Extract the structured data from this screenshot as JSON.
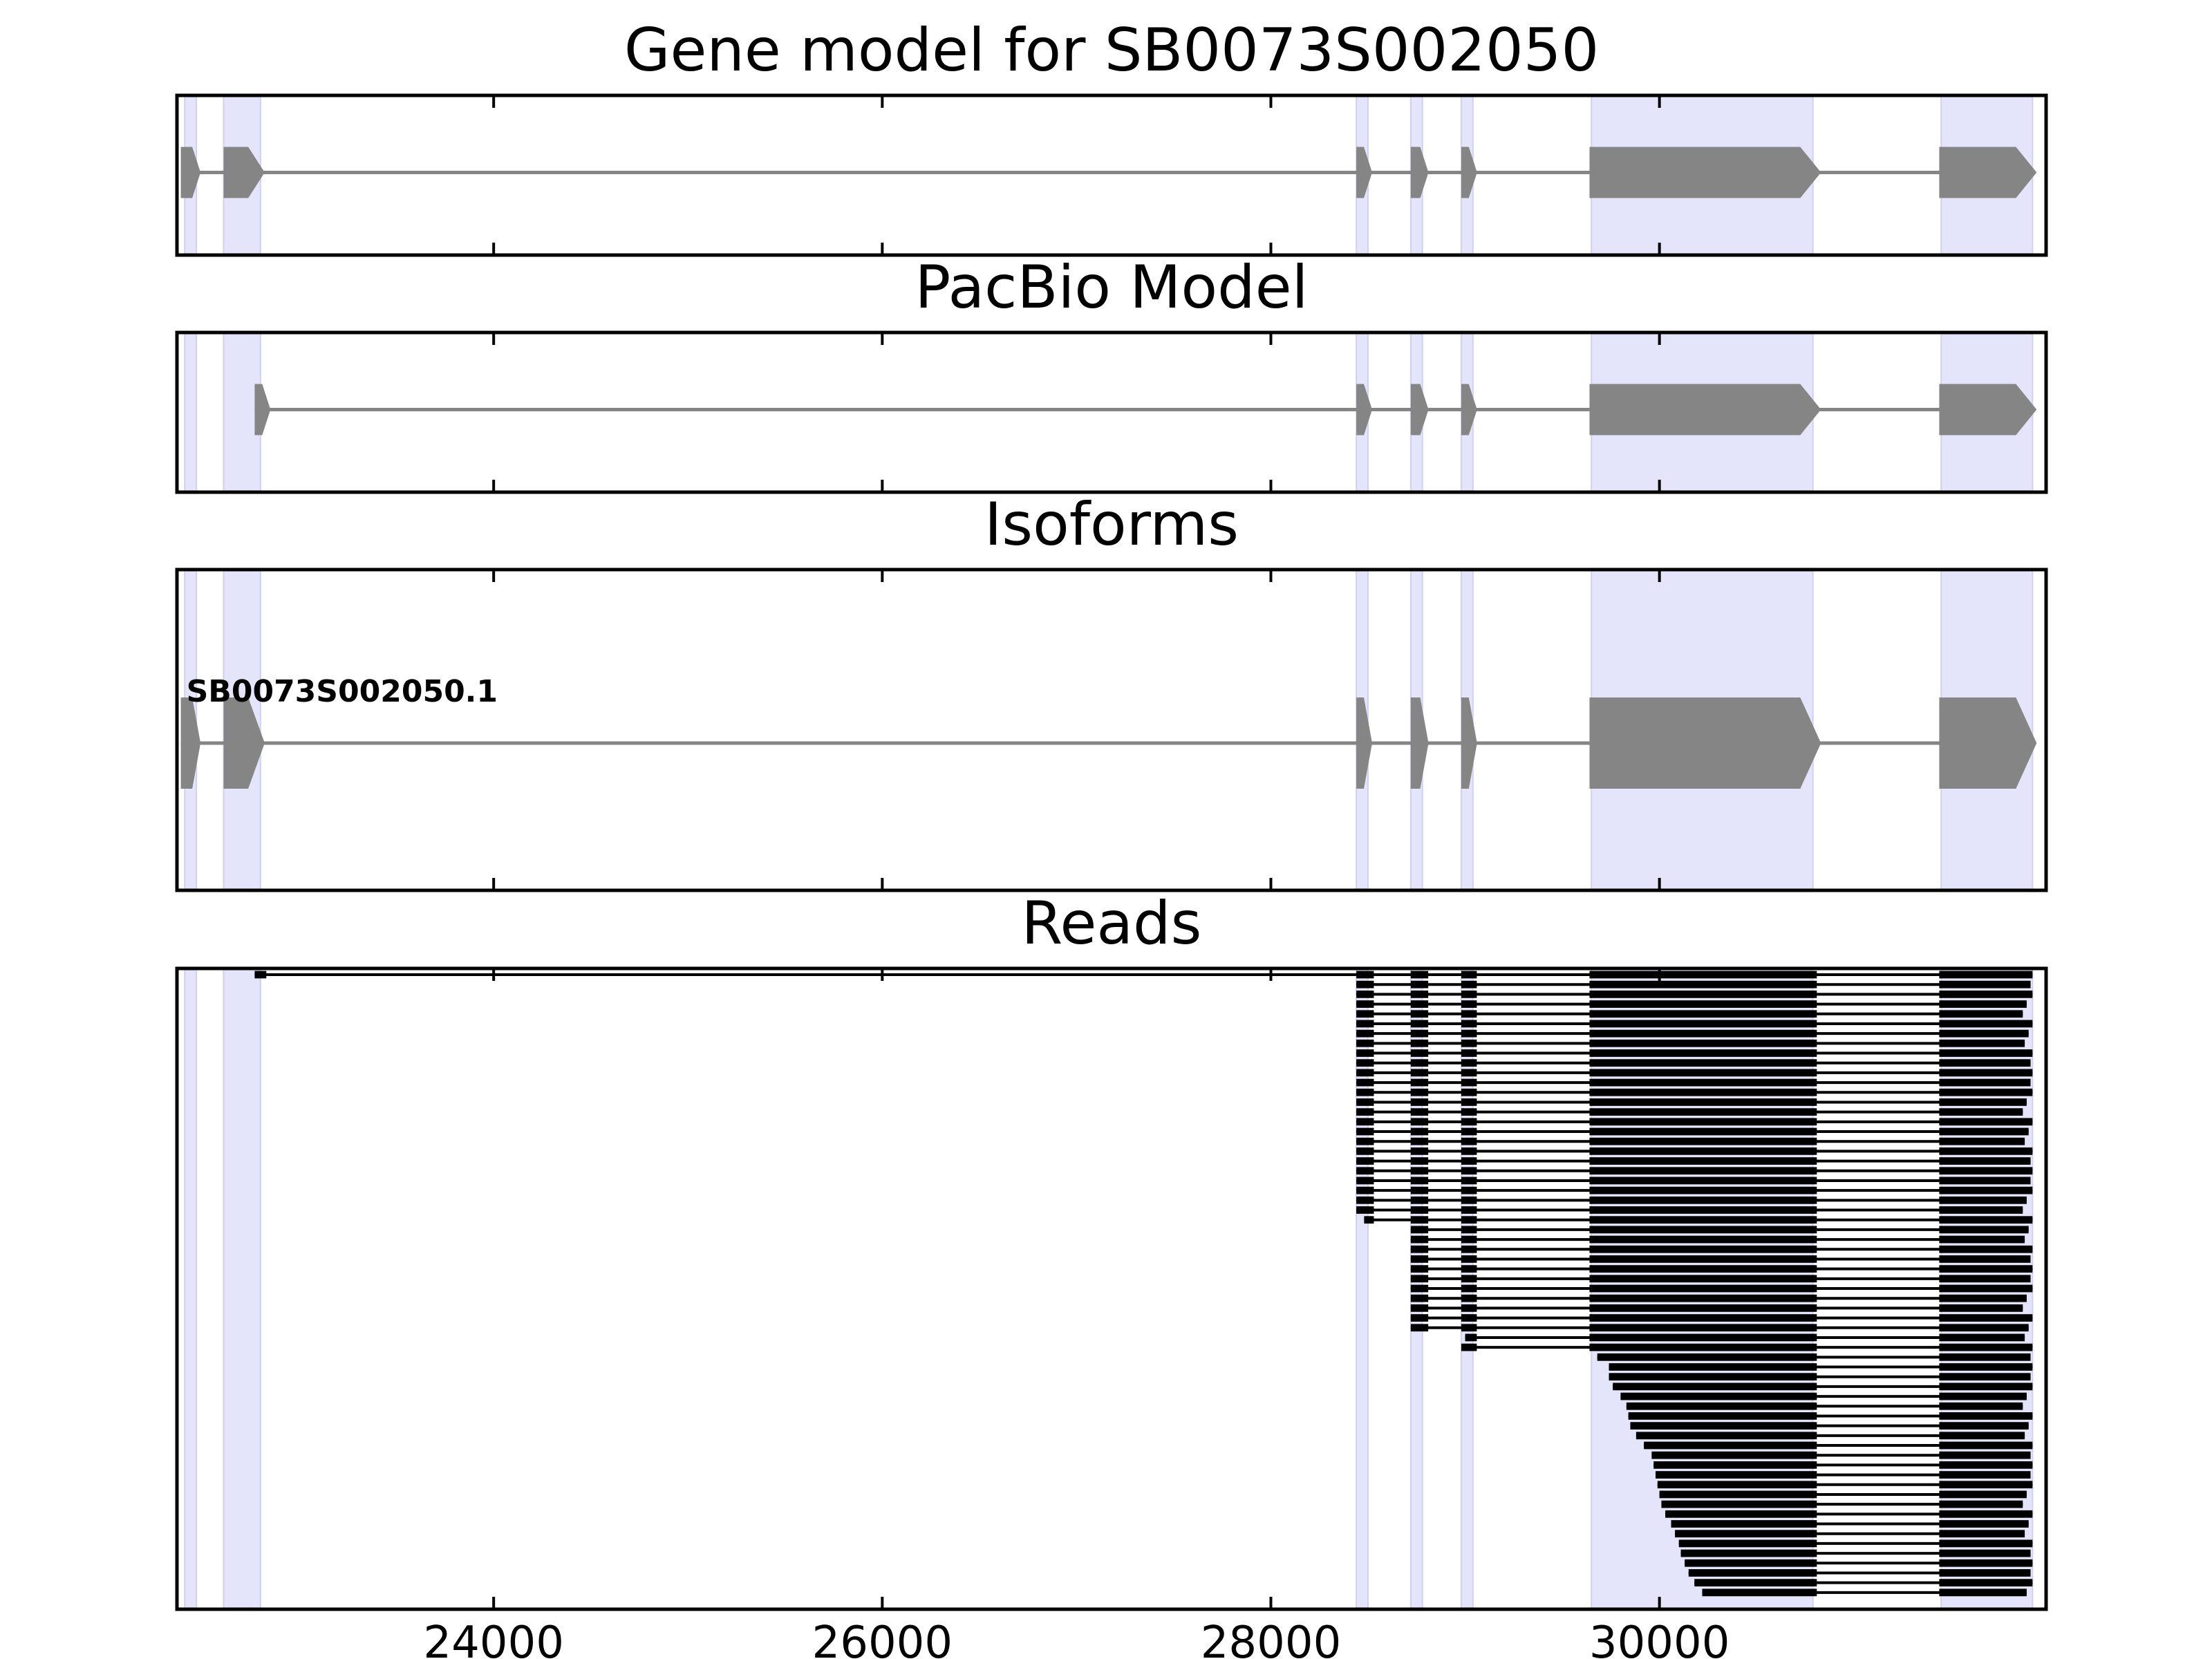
{
  "chart_data": {
    "type": "gene-structure",
    "x_ticks": [
      24000,
      26000,
      28000,
      30000
    ],
    "xlim": [
      22370,
      31990
    ],
    "colors": {
      "shade": "#e4e4fb",
      "feature": "#858585",
      "read": "#000000",
      "frame": "#000000"
    },
    "shaded_regions": [
      [
        22410,
        22470
      ],
      [
        22610,
        22800
      ],
      [
        28440,
        28500
      ],
      [
        28720,
        28780
      ],
      [
        28980,
        29040
      ],
      [
        29650,
        30790
      ],
      [
        31450,
        31920
      ]
    ],
    "panels": [
      {
        "title": "Gene model for SB0073S002050",
        "models": [
          {
            "label": "",
            "start": 22390,
            "end": 31920,
            "strand": "+",
            "exons": [
              [
                22390,
                22470
              ],
              [
                22610,
                22800
              ],
              [
                28440,
                28500
              ],
              [
                28720,
                28790
              ],
              [
                28980,
                29040
              ],
              [
                29640,
                30810
              ],
              [
                31440,
                31920
              ]
            ]
          }
        ]
      },
      {
        "title": "PacBio Model",
        "models": [
          {
            "label": "",
            "start": 22770,
            "end": 31920,
            "strand": "+",
            "exons": [
              [
                22770,
                22830
              ],
              [
                28440,
                28500
              ],
              [
                28720,
                28790
              ],
              [
                28980,
                29040
              ],
              [
                29640,
                30810
              ],
              [
                31440,
                31920
              ]
            ]
          }
        ]
      },
      {
        "title": "Isoforms",
        "models": [
          {
            "label": "SB0073S002050.1",
            "start": 22390,
            "end": 31920,
            "strand": "+",
            "exons": [
              [
                22390,
                22470
              ],
              [
                22610,
                22800
              ],
              [
                28440,
                28500
              ],
              [
                28720,
                28790
              ],
              [
                28980,
                29040
              ],
              [
                29640,
                30810
              ],
              [
                31440,
                31920
              ]
            ]
          }
        ]
      },
      {
        "title": "Reads",
        "reads_panel": true
      }
    ],
    "reads": {
      "exon_template": [
        [
          28440,
          28530
        ],
        [
          28720,
          28810
        ],
        [
          28980,
          29060
        ],
        [
          29640,
          30810
        ],
        [
          31440,
          31920
        ]
      ],
      "count": 60,
      "groups": [
        {
          "n": 1,
          "first_exon_start": 22770,
          "first_exon_end": 22830,
          "start_exon": 1
        },
        {
          "n": 24,
          "start_exon": 1
        },
        {
          "n": 1,
          "first_exon_start": 28480,
          "start_exon": 1
        },
        {
          "n": 11,
          "start_exon": 2
        },
        {
          "n": 1,
          "first_exon_start": 29000,
          "start_exon": 3
        },
        {
          "n": 1,
          "start_exon": 3
        }
      ],
      "tail_starts": [
        29680,
        29740,
        29740,
        29760,
        29800,
        29830,
        29840,
        29850,
        29880,
        29920,
        29960,
        29970,
        29980,
        29990,
        30000,
        30010,
        30030,
        30060,
        30080,
        30100,
        30110,
        30130,
        30150,
        30180,
        30220
      ],
      "end_values": [
        31920,
        31910,
        31920,
        31890,
        31870,
        31920,
        31900,
        31880,
        31920,
        31910
      ]
    }
  }
}
